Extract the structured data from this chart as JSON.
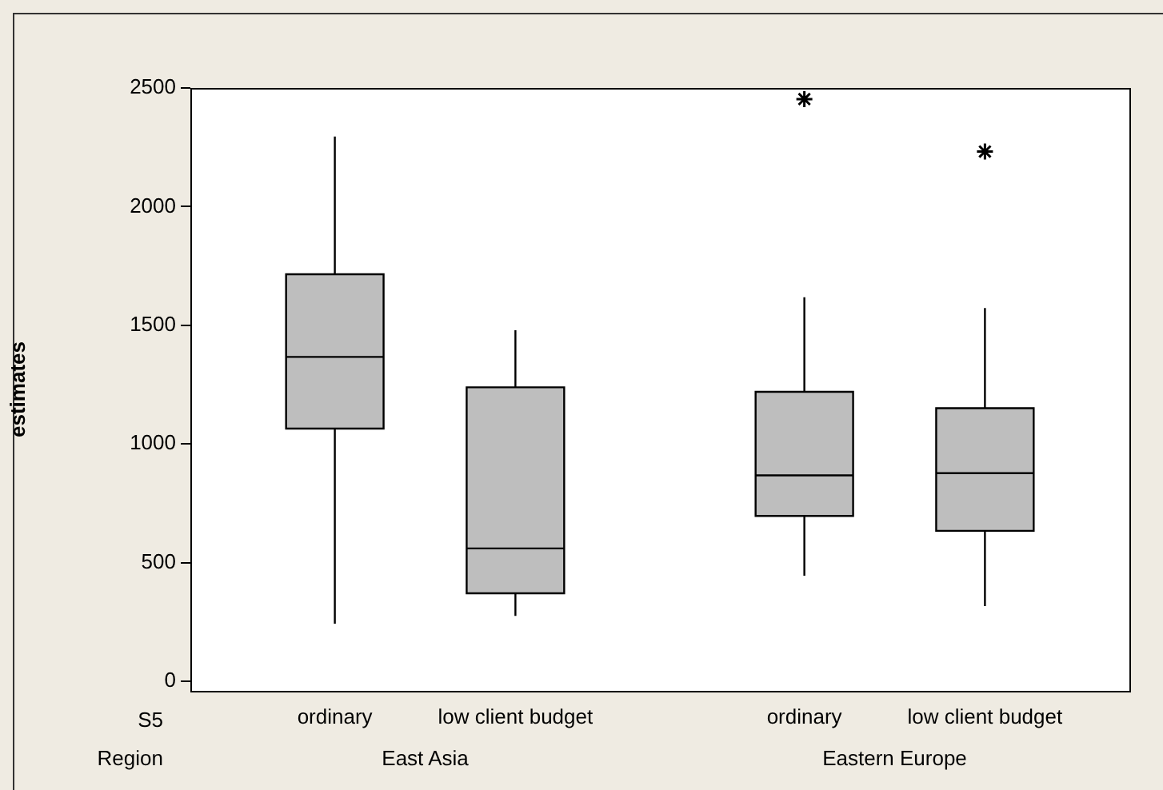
{
  "chart_data": {
    "type": "box",
    "ylabel": "estimates",
    "categories": [
      "ordinary",
      "low client budget",
      "ordinary",
      "low client budget"
    ],
    "annotations": [
      "S5",
      "Region",
      "East Asia",
      "Eastern Europe"
    ],
    "color": "#bebebe",
    "boxes": [
      {
        "low": 243,
        "q1": 1065,
        "median": 1367,
        "q3": 1715,
        "high": 2295
      },
      {
        "low": 276,
        "q1": 371,
        "median": 560,
        "q3": 1239,
        "high": 1479
      },
      {
        "low": 445,
        "q1": 697,
        "median": 868,
        "q3": 1220,
        "high": 1618,
        "outliers": [
          2453
        ]
      },
      {
        "low": 317,
        "q1": 634,
        "median": 877,
        "q3": 1151,
        "high": 1573,
        "outliers": [
          2232
        ]
      }
    ],
    "ylim": [
      -40,
      2500
    ],
    "yticks": [
      0,
      500,
      1000,
      1500,
      2000,
      2500
    ],
    "grid": false,
    "legend": false
  }
}
